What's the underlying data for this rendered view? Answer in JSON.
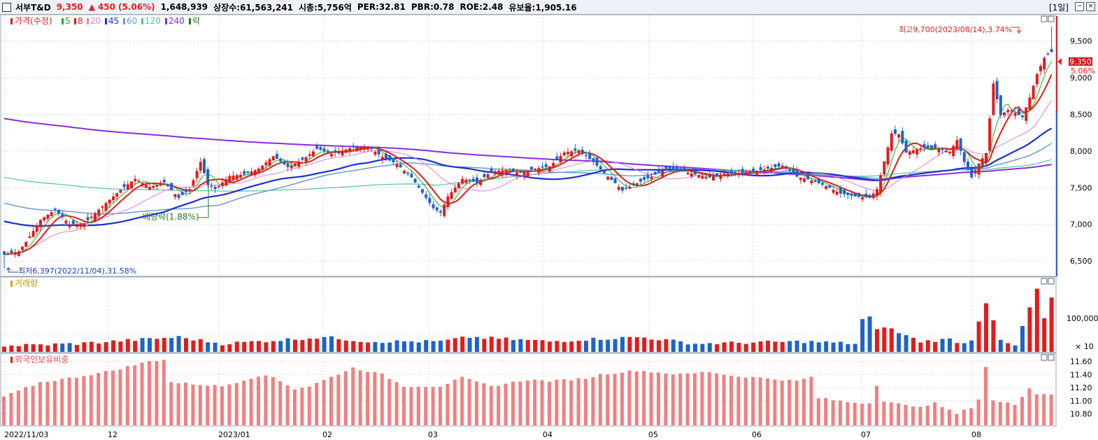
{
  "header": {
    "name": "서부T&D",
    "price": "9,350",
    "change_arrow": "▲",
    "change": "450",
    "change_pct": "(5.06%)",
    "volume": "1,648,939",
    "shares": "상장수:61,563,241",
    "marketcap": "시총:5,756억",
    "per": "PER:32.81",
    "pbr": "PBR:0.78",
    "roe": "ROE:2.48",
    "float": "유보율:1,905.16",
    "period": "[1일]"
  },
  "legend": {
    "price_label": "가격(수정)",
    "ma": [
      {
        "label": "5",
        "color": "#18b418"
      },
      {
        "label": "8",
        "color": "#e21c1c"
      },
      {
        "label": "20",
        "color": "#e07ee0"
      },
      {
        "label": "45",
        "color": "#1a2fd6"
      },
      {
        "label": "60",
        "color": "#6b9bd0"
      },
      {
        "label": "120",
        "color": "#55c0a8"
      },
      {
        "label": "240",
        "color": "#8a2be2"
      },
      {
        "label": "락",
        "color": "#227a22"
      }
    ],
    "volume_label": "거래량",
    "foreign_label": "외국인보유비중"
  },
  "annotations": {
    "high": "최고9,700(2023/08/14),3.74%",
    "low": "최저6,397(2022/11/04),31.58%",
    "dividend": "배당락(1.88%)"
  },
  "price_axis": {
    "ticks": [
      "9,500",
      "9,000",
      "8,500",
      "8,000",
      "7,500",
      "7,000",
      "6,500"
    ],
    "current_price": "9,350",
    "current_pct": "5.06%"
  },
  "volume_axis": {
    "ticks": [
      "100,000",
      "× 10"
    ]
  },
  "foreign_axis": {
    "ticks": [
      "11.60",
      "11.40",
      "11.20",
      "11.00",
      "10.80"
    ]
  },
  "date_axis": {
    "labels": [
      "2022/11/03",
      "12",
      "2023/01",
      "02",
      "03",
      "04",
      "05",
      "06",
      "07",
      "08"
    ]
  },
  "colors": {
    "up": "#e21c1c",
    "down": "#1e63c8",
    "foreign": "#f08080",
    "grid": "#b8c0cc"
  },
  "chart_data": {
    "type": "candlestick",
    "ylim": [
      6300,
      9850
    ],
    "price_ticks": [
      9500,
      9000,
      8500,
      8000,
      7500,
      7000,
      6500
    ],
    "high": 9700,
    "low": 6397,
    "last_close": 9350,
    "close_anchors": [
      [
        0,
        6590
      ],
      [
        4,
        6630
      ],
      [
        6,
        6760
      ],
      [
        10,
        7060
      ],
      [
        14,
        7200
      ],
      [
        18,
        7000
      ],
      [
        22,
        7010
      ],
      [
        26,
        7200
      ],
      [
        32,
        7470
      ],
      [
        36,
        7620
      ],
      [
        40,
        7510
      ],
      [
        44,
        7570
      ],
      [
        48,
        7360
      ],
      [
        51,
        7480
      ],
      [
        54,
        7850
      ],
      [
        56,
        7540
      ],
      [
        58,
        7480
      ],
      [
        62,
        7660
      ],
      [
        66,
        7680
      ],
      [
        70,
        7760
      ],
      [
        74,
        7930
      ],
      [
        78,
        7780
      ],
      [
        82,
        7880
      ],
      [
        86,
        8030
      ],
      [
        90,
        7960
      ],
      [
        96,
        8050
      ],
      [
        100,
        8060
      ],
      [
        104,
        7920
      ],
      [
        108,
        7820
      ],
      [
        112,
        7640
      ],
      [
        116,
        7360
      ],
      [
        118,
        7220
      ],
      [
        120,
        7160
      ],
      [
        122,
        7380
      ],
      [
        126,
        7620
      ],
      [
        130,
        7570
      ],
      [
        134,
        7720
      ],
      [
        138,
        7740
      ],
      [
        142,
        7700
      ],
      [
        146,
        7760
      ],
      [
        150,
        7790
      ],
      [
        154,
        7980
      ],
      [
        158,
        8010
      ],
      [
        162,
        7850
      ],
      [
        166,
        7650
      ],
      [
        168,
        7560
      ],
      [
        170,
        7460
      ],
      [
        174,
        7560
      ],
      [
        178,
        7650
      ],
      [
        182,
        7760
      ],
      [
        186,
        7730
      ],
      [
        190,
        7680
      ],
      [
        194,
        7640
      ],
      [
        198,
        7690
      ],
      [
        202,
        7700
      ],
      [
        206,
        7720
      ],
      [
        210,
        7760
      ],
      [
        214,
        7800
      ],
      [
        218,
        7650
      ],
      [
        222,
        7600
      ],
      [
        226,
        7520
      ],
      [
        230,
        7420
      ],
      [
        234,
        7380
      ],
      [
        238,
        7360
      ],
      [
        240,
        7480
      ],
      [
        242,
        7860
      ],
      [
        244,
        8240
      ],
      [
        246,
        8230
      ],
      [
        248,
        7980
      ],
      [
        252,
        8040
      ],
      [
        256,
        8040
      ],
      [
        260,
        7990
      ],
      [
        262,
        8150
      ],
      [
        264,
        7850
      ],
      [
        266,
        7640
      ],
      [
        268,
        7830
      ],
      [
        270,
        7970
      ],
      [
        272,
        8920
      ],
      [
        274,
        8490
      ],
      [
        276,
        8560
      ],
      [
        278,
        8520
      ],
      [
        280,
        8460
      ],
      [
        282,
        8730
      ],
      [
        284,
        9050
      ],
      [
        286,
        9270
      ],
      [
        288,
        9350
      ]
    ],
    "vol_anchors": [
      [
        0,
        2
      ],
      [
        20,
        3
      ],
      [
        48,
        6
      ],
      [
        60,
        3
      ],
      [
        88,
        6
      ],
      [
        100,
        4
      ],
      [
        120,
        4
      ],
      [
        128,
        6
      ],
      [
        150,
        4
      ],
      [
        160,
        5
      ],
      [
        175,
        6
      ],
      [
        190,
        3
      ],
      [
        220,
        4
      ],
      [
        234,
        3
      ],
      [
        236,
        14
      ],
      [
        238,
        15
      ],
      [
        240,
        9
      ],
      [
        242,
        11
      ],
      [
        246,
        8
      ],
      [
        252,
        4
      ],
      [
        260,
        5
      ],
      [
        264,
        3
      ],
      [
        266,
        5
      ],
      [
        270,
        22
      ],
      [
        272,
        14
      ],
      [
        274,
        4
      ],
      [
        278,
        2
      ],
      [
        284,
        28
      ],
      [
        286,
        14
      ],
      [
        288,
        24
      ]
    ],
    "foreign_anchors": [
      [
        0,
        11.06
      ],
      [
        10,
        11.28
      ],
      [
        20,
        11.36
      ],
      [
        30,
        11.46
      ],
      [
        40,
        11.6
      ],
      [
        44,
        11.63
      ],
      [
        46,
        11.28
      ],
      [
        60,
        11.22
      ],
      [
        70,
        11.38
      ],
      [
        74,
        11.36
      ],
      [
        80,
        11.18
      ],
      [
        84,
        11.22
      ],
      [
        96,
        11.5
      ],
      [
        104,
        11.4
      ],
      [
        110,
        11.22
      ],
      [
        120,
        11.22
      ],
      [
        126,
        11.35
      ],
      [
        134,
        11.22
      ],
      [
        144,
        11.32
      ],
      [
        150,
        11.3
      ],
      [
        160,
        11.34
      ],
      [
        164,
        11.4
      ],
      [
        174,
        11.46
      ],
      [
        186,
        11.4
      ],
      [
        194,
        11.44
      ],
      [
        200,
        11.38
      ],
      [
        210,
        11.34
      ],
      [
        218,
        11.3
      ],
      [
        222,
        11.36
      ],
      [
        224,
        11.04
      ],
      [
        232,
        10.98
      ],
      [
        238,
        10.96
      ],
      [
        240,
        11.24
      ],
      [
        242,
        11.0
      ],
      [
        250,
        10.9
      ],
      [
        256,
        10.96
      ],
      [
        262,
        10.8
      ],
      [
        266,
        10.9
      ],
      [
        268,
        11.02
      ],
      [
        270,
        11.52
      ],
      [
        272,
        11.0
      ],
      [
        278,
        10.94
      ],
      [
        282,
        11.2
      ],
      [
        284,
        11.1
      ],
      [
        288,
        11.1
      ]
    ]
  }
}
